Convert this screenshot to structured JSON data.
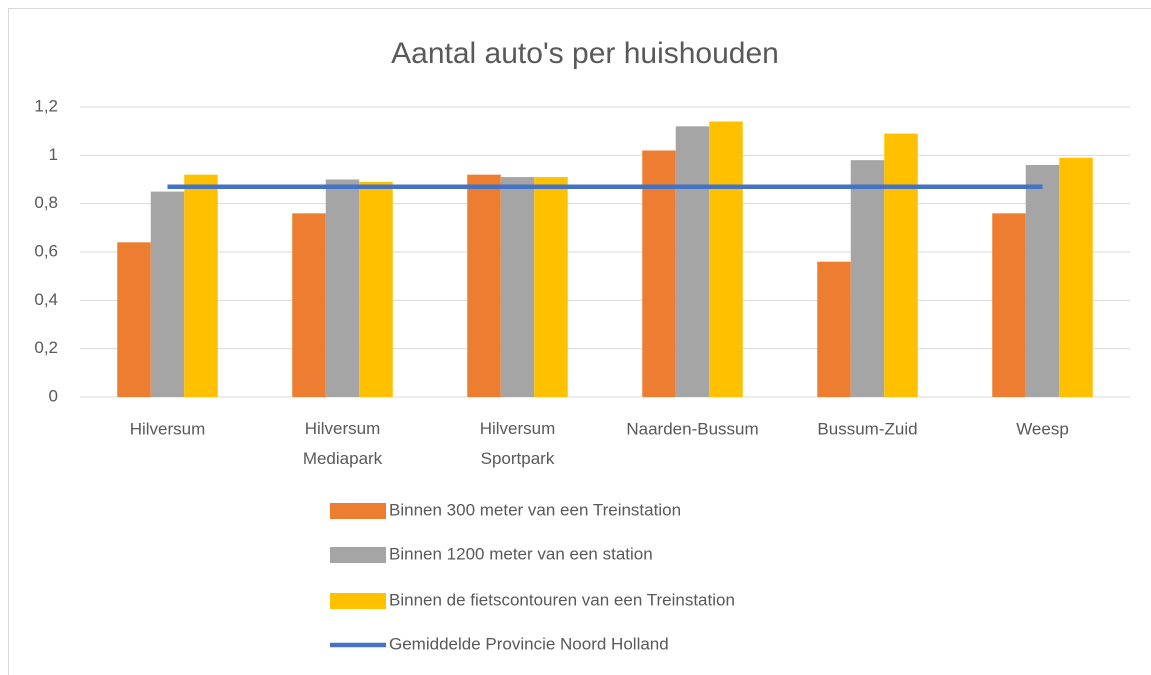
{
  "chart_data": {
    "type": "bar",
    "title": "Aantal auto's per huishouden",
    "categories": [
      "Hilversum",
      "Hilversum Mediapark",
      "Hilversum Sportpark",
      "Naarden-Bussum",
      "Bussum-Zuid",
      "Weesp"
    ],
    "series": [
      {
        "name": "Binnen 300 meter van een Treinstation",
        "color": "#ed7d31",
        "values": [
          0.64,
          0.76,
          0.92,
          1.02,
          0.56,
          0.76
        ]
      },
      {
        "name": "Binnen 1200 meter van een station",
        "color": "#a5a5a5",
        "values": [
          0.85,
          0.9,
          0.91,
          1.12,
          0.98,
          0.96
        ]
      },
      {
        "name": "Binnen de fietscontouren van een Treinstation",
        "color": "#ffc000",
        "values": [
          0.92,
          0.89,
          0.91,
          1.14,
          1.09,
          0.99
        ]
      },
      {
        "name": "Gemiddelde Provincie Noord Holland",
        "color": "#4472c4",
        "type": "line",
        "values": [
          0.87,
          0.87,
          0.87,
          0.87,
          0.87,
          0.87
        ]
      }
    ],
    "ylim": [
      0,
      1.2
    ],
    "yticks": [
      0,
      {
        "value": 0.2,
        "label": "0,2"
      },
      {
        "value": 0.4,
        "label": "0,4"
      },
      {
        "value": 0.6,
        "label": "0,6"
      },
      {
        "value": 0.8,
        "label": "0,8"
      },
      1,
      {
        "value": 1.2,
        "label": "1,2"
      }
    ],
    "grid": true,
    "legend": "bottom"
  }
}
